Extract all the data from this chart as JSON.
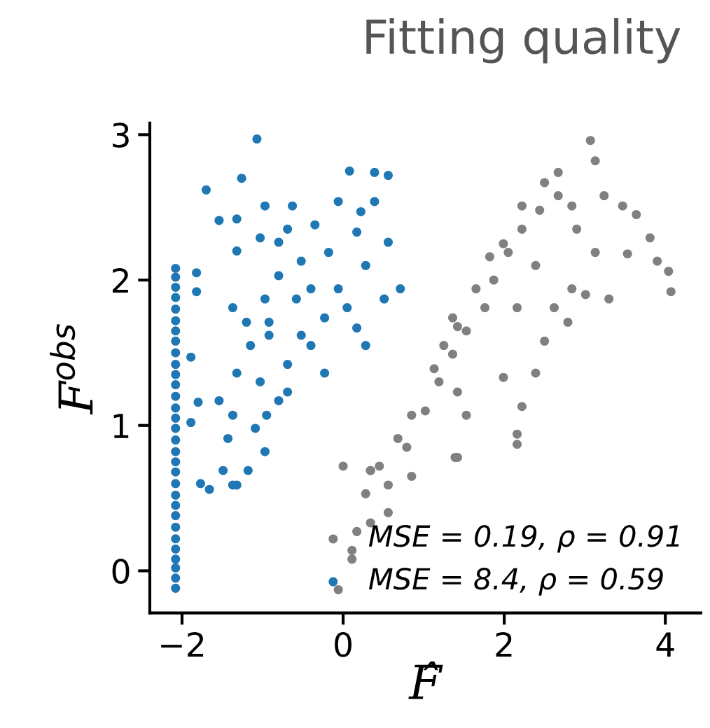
{
  "chart_data": {
    "type": "scatter",
    "title": "Fitting quality",
    "xlabel": "F̂",
    "ylabel": "F$^{obs}$",
    "xlim": [
      -2.4,
      4.44
    ],
    "ylim": [
      -0.29,
      3.08
    ],
    "xticks": [
      {
        "value": -2,
        "label": "−2"
      },
      0,
      2,
      4
    ],
    "yticks": [
      0,
      1,
      2,
      3
    ],
    "grid": false,
    "legend": "bottom right",
    "marker": "circle",
    "series": [
      {
        "name": "MSE = 0.19, ρ = 0.91",
        "color": "#808080",
        "x": [
          -0.06,
          0.11,
          0.34,
          0.56,
          0.79,
          1.02,
          1.19,
          1.36,
          1.53,
          1.76,
          1.87,
          2.05,
          2.22,
          2.44,
          2.67,
          2.84,
          3.07,
          3.13,
          3.24,
          3.47,
          3.64,
          3.81,
          4.04,
          4.07,
          3.9,
          3.53,
          3.3,
          3.01,
          2.84,
          2.79,
          2.62,
          2.5,
          2.39,
          2.22,
          2.16,
          2.16,
          1.99,
          1.82,
          1.99,
          2.67,
          2.5,
          2.9,
          3.13,
          2.39,
          2.16,
          1.36,
          1.13,
          0.85,
          0.68,
          0.45,
          1.42,
          1.53,
          0.85,
          0.28,
          0.34,
          0.17,
          0.11,
          0.56,
          1.25,
          1.65,
          2.22,
          1.42,
          0.0,
          0.34,
          1.42,
          1.39
        ],
        "values": [
          -0.13,
          0.08,
          0.33,
          0.59,
          0.85,
          1.1,
          1.3,
          1.49,
          1.65,
          1.81,
          2.0,
          2.19,
          2.35,
          2.48,
          2.58,
          2.51,
          2.96,
          2.82,
          2.58,
          2.51,
          2.45,
          2.29,
          2.06,
          1.92,
          2.13,
          2.18,
          1.87,
          1.9,
          1.94,
          1.71,
          1.81,
          1.58,
          1.36,
          1.13,
          0.94,
          0.87,
          1.33,
          2.16,
          2.25,
          2.74,
          2.67,
          2.35,
          2.19,
          2.1,
          1.81,
          1.74,
          1.39,
          1.07,
          0.91,
          0.72,
          0.78,
          1.07,
          0.65,
          0.53,
          0.69,
          0.27,
          0.14,
          0.4,
          1.55,
          1.94,
          2.51,
          1.23,
          0.72,
          0.69,
          1.68,
          0.78
        ]
      },
      {
        "name": "MSE = 8.4, ρ = 0.59",
        "color": "#1f77b4",
        "x": [
          -2.08,
          -2.08,
          -2.08,
          -2.08,
          -2.08,
          -2.08,
          -2.08,
          -2.08,
          -2.08,
          -2.08,
          -2.08,
          -2.08,
          -2.08,
          -2.08,
          -2.08,
          -2.08,
          -2.08,
          -2.08,
          -2.08,
          -2.08,
          -2.08,
          -2.08,
          -2.08,
          -2.08,
          -2.08,
          -2.08,
          -2.08,
          -2.08,
          -2.08,
          -2.08,
          -2.08,
          -1.07,
          -1.7,
          -1.54,
          -1.82,
          -1.82,
          -1.89,
          -1.8,
          -1.89,
          -1.37,
          -1.18,
          -1.32,
          -0.97,
          -0.8,
          -0.69,
          -0.4,
          -0.23,
          0.28,
          0.71,
          0.56,
          0.56,
          0.39,
          0.08,
          -0.06,
          0.22,
          -0.35,
          -0.69,
          -0.97,
          -1.26,
          -1.32,
          -1.32,
          -1.37,
          -1.2,
          -0.97,
          -0.8,
          -0.52,
          -0.18,
          -0.06,
          0.28,
          -0.23,
          -0.52,
          -0.92,
          -1.15,
          -1.32,
          -1.03,
          -0.69,
          -1.54,
          -1.43,
          -1.49,
          -1.66,
          -1.77,
          -1.37,
          -1.09,
          -0.95,
          -0.92,
          -0.58,
          -0.4,
          0.05,
          0.17,
          0.51,
          -0.8,
          -1.03,
          -0.63,
          0.39,
          0.17
        ],
        "values": [
          -0.12,
          -0.05,
          0.02,
          0.08,
          0.15,
          0.22,
          0.3,
          0.38,
          0.45,
          0.52,
          0.6,
          0.68,
          0.75,
          0.82,
          0.9,
          0.98,
          1.05,
          1.12,
          1.2,
          1.28,
          1.35,
          1.42,
          1.5,
          1.58,
          1.65,
          1.72,
          1.8,
          1.88,
          1.95,
          2.02,
          2.08,
          2.97,
          2.62,
          2.41,
          2.05,
          1.92,
          1.47,
          1.16,
          1.02,
          1.07,
          0.69,
          0.59,
          0.82,
          1.17,
          1.42,
          1.55,
          1.36,
          1.55,
          1.94,
          2.26,
          2.72,
          2.74,
          2.75,
          2.54,
          2.47,
          2.38,
          2.35,
          2.51,
          2.7,
          2.42,
          2.2,
          1.81,
          1.71,
          1.87,
          2.03,
          2.13,
          2.19,
          1.94,
          2.1,
          1.74,
          1.62,
          1.62,
          1.55,
          1.36,
          1.3,
          1.23,
          1.17,
          0.91,
          0.69,
          0.56,
          0.6,
          0.59,
          0.98,
          1.07,
          1.71,
          1.87,
          1.94,
          1.81,
          1.67,
          1.87,
          2.26,
          2.29,
          2.51,
          2.54,
          2.33
        ]
      }
    ]
  }
}
